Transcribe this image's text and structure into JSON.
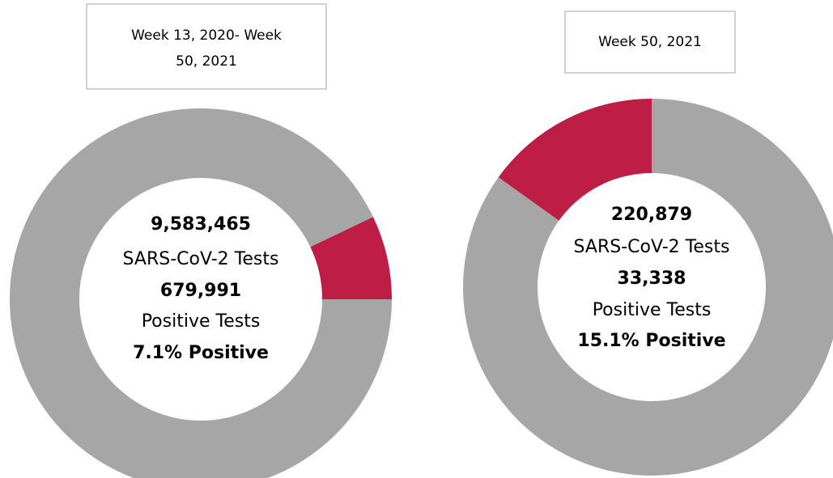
{
  "chart_data": [
    {
      "type": "donut",
      "title": "Week 13, 2020- Week 50, 2021",
      "values": [
        7.1,
        92.9
      ],
      "value_labels": [
        "7.1% Positive",
        null
      ],
      "colors": [
        "#be1e45",
        "#a6a6a6"
      ],
      "annotations": [
        "9,583,465",
        "SARS-CoV-2 Tests",
        "679,991",
        "Positive Tests"
      ]
    },
    {
      "type": "donut",
      "title": "Week 50, 2021",
      "values": [
        15.1,
        84.9
      ],
      "value_labels": [
        "15.1% Positive",
        null
      ],
      "colors": [
        "#be1e45",
        "#a6a6a6"
      ],
      "annotations": [
        "220,879",
        "SARS-CoV-2 Tests",
        "33,338",
        "Positive Tests"
      ]
    }
  ]
}
